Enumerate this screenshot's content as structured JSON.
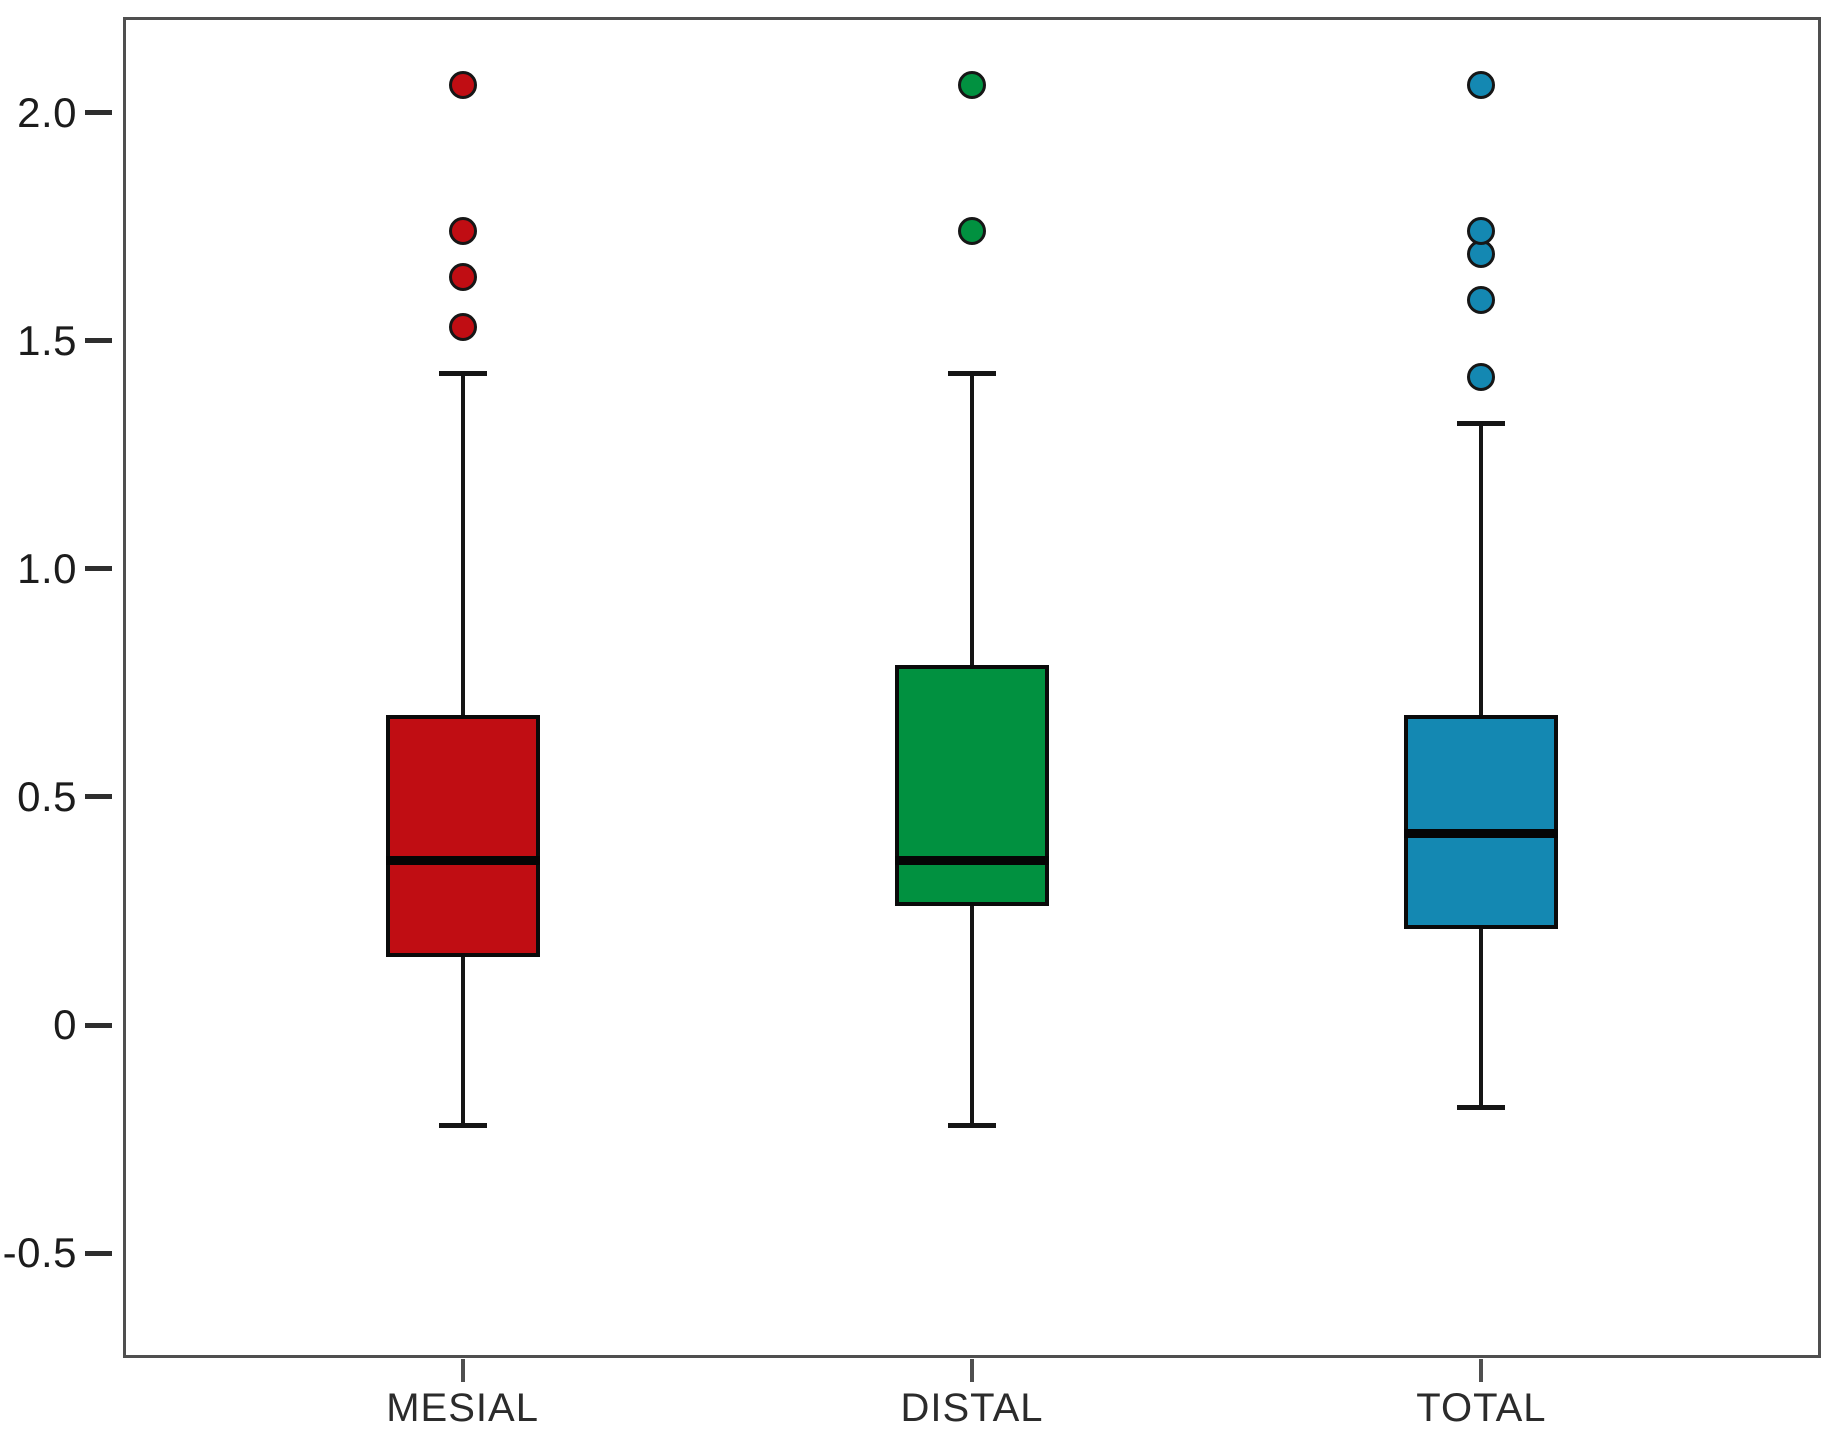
{
  "figure": {
    "background": "#ffffff",
    "frame_color": "#4f4f4f",
    "text_color": "#1c1c1c"
  },
  "chart_data": {
    "type": "boxplot",
    "title": "",
    "xlabel": "",
    "ylabel": "",
    "grid": false,
    "legend": false,
    "categories": [
      "MESIAL",
      "DISTAL",
      "TOTAL"
    ],
    "y_axis": {
      "ticks": [
        2.0,
        1.5,
        1.0,
        0.5,
        0,
        -0.5
      ],
      "tick_labels": [
        "2.0",
        "1.5",
        "1.0",
        "0.5",
        "0",
        "-0.5"
      ],
      "range": [
        -0.73,
        2.21
      ]
    },
    "series": [
      {
        "name": "MESIAL",
        "color": "#c00d13",
        "whisker_low": -0.22,
        "q1": 0.15,
        "median": 0.36,
        "q3": 0.68,
        "whisker_high": 1.43,
        "outliers": [
          1.53,
          1.64,
          1.74,
          2.06
        ]
      },
      {
        "name": "DISTAL",
        "color": "#019140",
        "whisker_low": -0.22,
        "q1": 0.26,
        "median": 0.36,
        "q3": 0.79,
        "whisker_high": 1.43,
        "outliers": [
          1.74,
          2.06
        ]
      },
      {
        "name": "TOTAL",
        "color": "#1488b2",
        "whisker_low": -0.18,
        "q1": 0.21,
        "median": 0.42,
        "q3": 0.68,
        "whisker_high": 1.32,
        "outliers": [
          1.42,
          1.59,
          1.69,
          1.74,
          2.06
        ]
      }
    ]
  }
}
